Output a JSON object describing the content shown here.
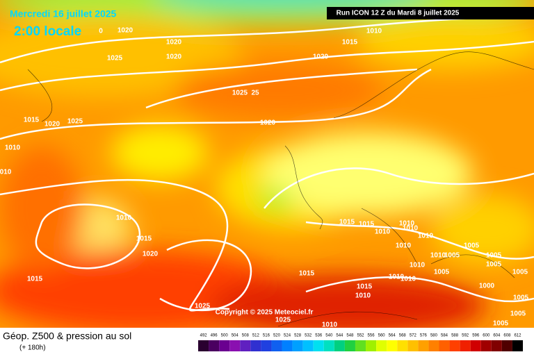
{
  "header": {
    "date": "Mercredi 16 juillet 2025",
    "time": "2:00 locale",
    "run": "Run ICON 12 Z du Mardi 8 juillet 2025"
  },
  "copyright": "Copyright © 2025 Meteociel.fr",
  "isobar_labels": [
    "1020",
    "0",
    "1020",
    "1025",
    "1020",
    "1010",
    "1015",
    "1020",
    "1025",
    "25",
    "1015",
    "1020",
    "1025",
    "1020",
    "1010",
    "010",
    "1010",
    "1015",
    "1020",
    "1015",
    "1025",
    "1015",
    "1015",
    "1010",
    "1010",
    "1010",
    "1010",
    "1010",
    "1010",
    "1010",
    "1005",
    "1005",
    "1005",
    "1005",
    "1015",
    "1010",
    "1010",
    "1005",
    "1015",
    "1010",
    "1000",
    "1005",
    "1005",
    "1005",
    "1005",
    "1010",
    "1025"
  ],
  "legend": {
    "title": "Géop. Z500 & pression au sol",
    "subtitle": "(+ 180h)",
    "scale": [
      "492",
      "496",
      "500",
      "504",
      "508",
      "512",
      "516",
      "520",
      "524",
      "528",
      "532",
      "536",
      "540",
      "544",
      "548",
      "552",
      "556",
      "560",
      "564",
      "568",
      "572",
      "576",
      "580",
      "584",
      "588",
      "592",
      "596",
      "600",
      "604",
      "608",
      "612"
    ],
    "scale_colors": [
      "#2a0030",
      "#4a0060",
      "#6a0090",
      "#8a10b0",
      "#6020c0",
      "#3030d0",
      "#2040e0",
      "#1060f0",
      "#0080ff",
      "#00a0ff",
      "#00c0ff",
      "#00e0f0",
      "#00e0c0",
      "#00d080",
      "#20d040",
      "#60e020",
      "#a0f000",
      "#e0ff00",
      "#ffff00",
      "#ffe000",
      "#ffc000",
      "#ffa000",
      "#ff8000",
      "#ff6000",
      "#ff4000",
      "#f02000",
      "#d00000",
      "#a00000",
      "#800000",
      "#500000",
      "#000000"
    ]
  }
}
